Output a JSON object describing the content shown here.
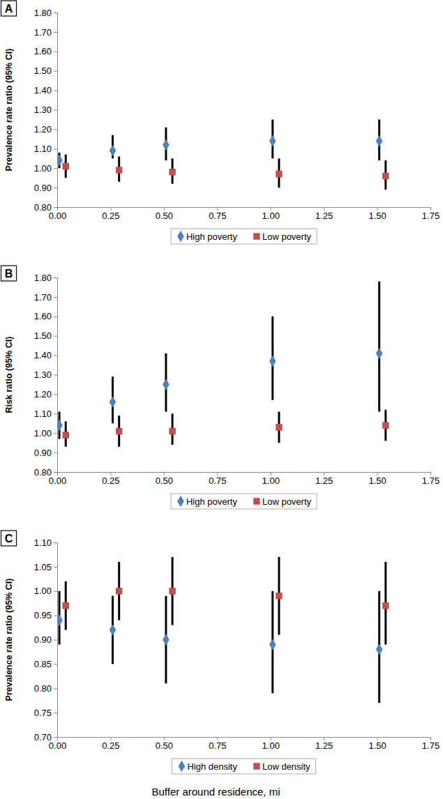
{
  "chart_data": [
    {
      "type": "scatter",
      "panel_label": "A",
      "y_label": "Prevalence rate ratio (95% CI)",
      "legend": "bottom",
      "xlim": [
        0,
        1.75
      ],
      "xticks": [
        {
          "value": 0,
          "label": "0.00"
        },
        {
          "value": 0.25,
          "label": "0.25"
        },
        {
          "value": 0.5,
          "label": "0.50"
        },
        {
          "value": 0.75,
          "label": "0.75"
        },
        {
          "value": 1,
          "label": "1.00"
        },
        {
          "value": 1.25,
          "label": "1.25"
        },
        {
          "value": 1.5,
          "label": "1.50"
        },
        {
          "value": 1.75,
          "label": "1.75"
        }
      ],
      "ylim": [
        0.8,
        1.8
      ],
      "yticks": [
        {
          "value": 0.8,
          "label": "0.80"
        },
        {
          "value": 0.9,
          "label": "0.90"
        },
        {
          "value": 1.0,
          "label": "1.00"
        },
        {
          "value": 1.1,
          "label": "1.10"
        },
        {
          "value": 1.2,
          "label": "1.20"
        },
        {
          "value": 1.3,
          "label": "1.30"
        },
        {
          "value": 1.4,
          "label": "1.40"
        },
        {
          "value": 1.5,
          "label": "1.50"
        },
        {
          "value": 1.6,
          "label": "1.60"
        },
        {
          "value": 1.7,
          "label": "1.70"
        },
        {
          "value": 1.8,
          "label": "1.80"
        }
      ],
      "series": [
        {
          "name": "High poverty",
          "color": "#4f81bd",
          "marker": "diamond",
          "x": [
            0.01,
            0.26,
            0.51,
            1.01,
            1.51
          ],
          "values": [
            1.04,
            1.09,
            1.12,
            1.14,
            1.14
          ],
          "ci_low": [
            1.0,
            1.05,
            1.04,
            1.05,
            1.04
          ],
          "ci_high": [
            1.08,
            1.17,
            1.21,
            1.25,
            1.25
          ]
        },
        {
          "name": "Low poverty",
          "color": "#c0504d",
          "marker": "square",
          "x": [
            0.04,
            0.29,
            0.54,
            1.04,
            1.54
          ],
          "values": [
            1.01,
            0.99,
            0.98,
            0.97,
            0.96
          ],
          "ci_low": [
            0.95,
            0.93,
            0.92,
            0.9,
            0.89
          ],
          "ci_high": [
            1.07,
            1.06,
            1.05,
            1.05,
            1.04
          ]
        }
      ]
    },
    {
      "type": "scatter",
      "panel_label": "B",
      "y_label": "Risk ratio (95% CI)",
      "legend": "bottom",
      "xlim": [
        0,
        1.75
      ],
      "xticks": [
        {
          "value": 0,
          "label": "0.00"
        },
        {
          "value": 0.25,
          "label": "0.25"
        },
        {
          "value": 0.5,
          "label": "0.50"
        },
        {
          "value": 0.75,
          "label": "0.75"
        },
        {
          "value": 1,
          "label": "1.00"
        },
        {
          "value": 1.25,
          "label": "1.25"
        },
        {
          "value": 1.5,
          "label": "1.50"
        },
        {
          "value": 1.75,
          "label": "1.75"
        }
      ],
      "ylim": [
        0.8,
        1.8
      ],
      "yticks": [
        {
          "value": 0.8,
          "label": "0.80"
        },
        {
          "value": 0.9,
          "label": "0.90"
        },
        {
          "value": 1.0,
          "label": "1.00"
        },
        {
          "value": 1.1,
          "label": "1.10"
        },
        {
          "value": 1.2,
          "label": "1.20"
        },
        {
          "value": 1.3,
          "label": "1.30"
        },
        {
          "value": 1.4,
          "label": "1.40"
        },
        {
          "value": 1.5,
          "label": "1.50"
        },
        {
          "value": 1.6,
          "label": "1.60"
        },
        {
          "value": 1.7,
          "label": "1.70"
        },
        {
          "value": 1.8,
          "label": "1.80"
        }
      ],
      "series": [
        {
          "name": "High poverty",
          "color": "#4f81bd",
          "marker": "diamond",
          "x": [
            0.01,
            0.26,
            0.51,
            1.01,
            1.51
          ],
          "values": [
            1.04,
            1.16,
            1.25,
            1.37,
            1.41
          ],
          "ci_low": [
            0.97,
            1.05,
            1.11,
            1.17,
            1.11
          ],
          "ci_high": [
            1.11,
            1.29,
            1.41,
            1.6,
            1.78
          ]
        },
        {
          "name": "Low poverty",
          "color": "#c0504d",
          "marker": "square",
          "x": [
            0.04,
            0.29,
            0.54,
            1.04,
            1.54
          ],
          "values": [
            0.99,
            1.01,
            1.01,
            1.03,
            1.04
          ],
          "ci_low": [
            0.93,
            0.93,
            0.94,
            0.95,
            0.96
          ],
          "ci_high": [
            1.06,
            1.09,
            1.1,
            1.11,
            1.12
          ]
        }
      ]
    },
    {
      "type": "scatter",
      "panel_label": "C",
      "y_label": "Prevalence rate ratio (95% CI)",
      "x_label": "Buffer around residence, mi",
      "legend": "bottom",
      "xlim": [
        0,
        1.75
      ],
      "xticks": [
        {
          "value": 0,
          "label": "0.00"
        },
        {
          "value": 0.25,
          "label": "0.25"
        },
        {
          "value": 0.5,
          "label": "0.50"
        },
        {
          "value": 0.75,
          "label": "0.75"
        },
        {
          "value": 1,
          "label": "1.00"
        },
        {
          "value": 1.25,
          "label": "1.25"
        },
        {
          "value": 1.5,
          "label": "1.50"
        },
        {
          "value": 1.75,
          "label": "1.75"
        }
      ],
      "ylim": [
        0.7,
        1.1
      ],
      "yticks": [
        {
          "value": 0.7,
          "label": "0.70"
        },
        {
          "value": 0.75,
          "label": "0.75"
        },
        {
          "value": 0.8,
          "label": "0.80"
        },
        {
          "value": 0.85,
          "label": "0.85"
        },
        {
          "value": 0.9,
          "label": "0.90"
        },
        {
          "value": 0.95,
          "label": "0.95"
        },
        {
          "value": 1.0,
          "label": "1.00"
        },
        {
          "value": 1.05,
          "label": "1.05"
        },
        {
          "value": 1.1,
          "label": "1.10"
        }
      ],
      "series": [
        {
          "name": "High density",
          "color": "#4f81bd",
          "marker": "diamond",
          "x": [
            0.01,
            0.26,
            0.51,
            1.01,
            1.51
          ],
          "values": [
            0.94,
            0.92,
            0.9,
            0.89,
            0.88
          ],
          "ci_low": [
            0.89,
            0.85,
            0.81,
            0.79,
            0.77
          ],
          "ci_high": [
            1.0,
            0.99,
            0.99,
            1.0,
            1.0
          ]
        },
        {
          "name": "Low density",
          "color": "#c0504d",
          "marker": "square",
          "x": [
            0.04,
            0.29,
            0.54,
            1.04,
            1.54
          ],
          "values": [
            0.97,
            1.0,
            1.0,
            0.99,
            0.97
          ],
          "ci_low": [
            0.92,
            0.94,
            0.93,
            0.91,
            0.89
          ],
          "ci_high": [
            1.02,
            1.06,
            1.07,
            1.07,
            1.06
          ]
        }
      ]
    }
  ]
}
